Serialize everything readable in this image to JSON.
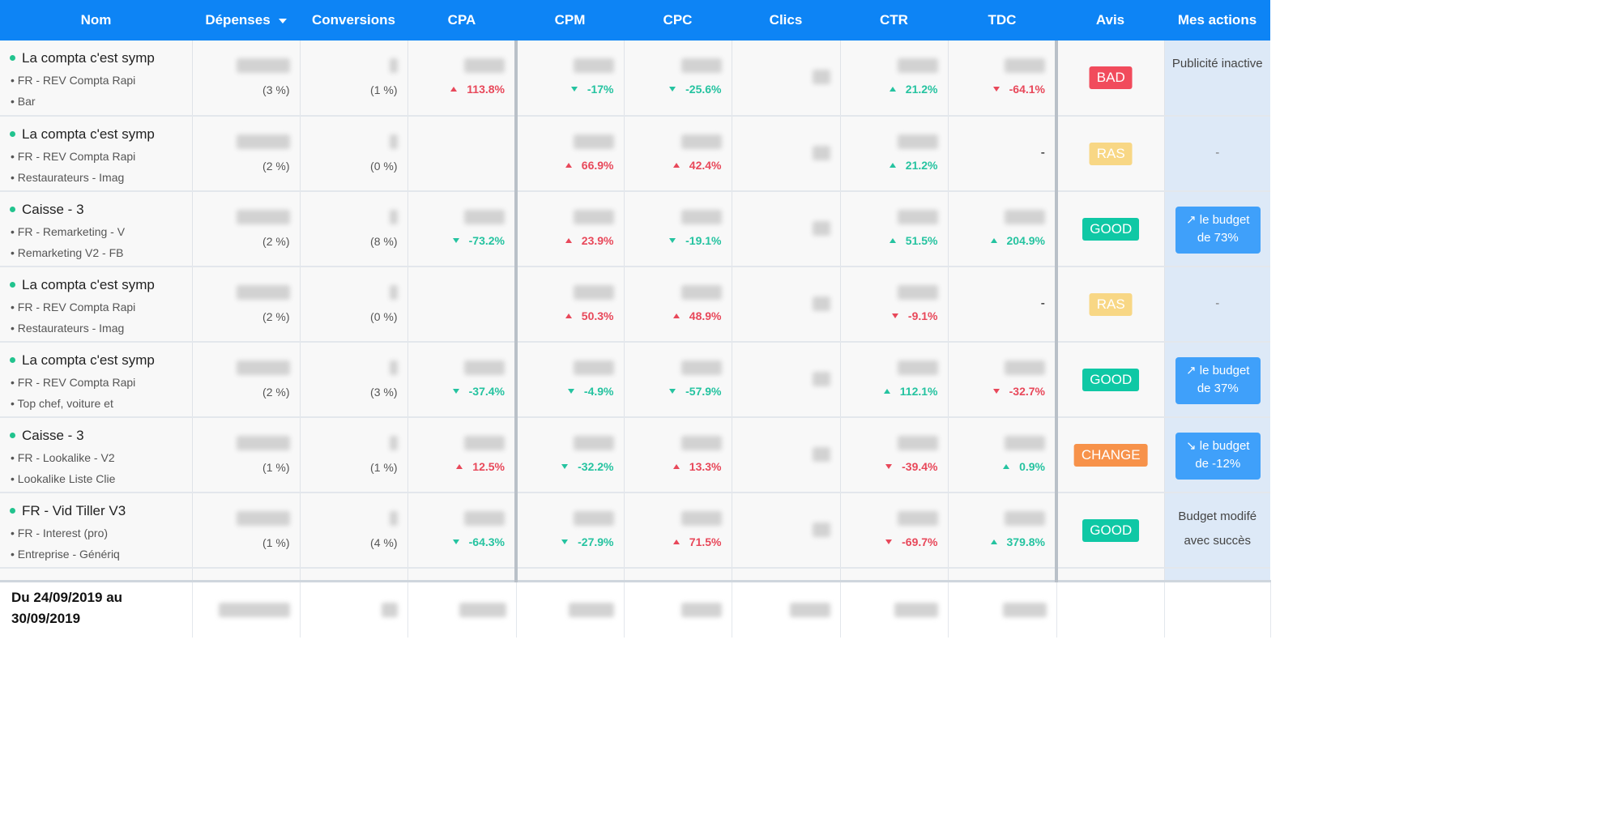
{
  "columns": [
    "Nom",
    "Dépenses",
    "Conversions",
    "CPA",
    "CPM",
    "CPC",
    "Clics",
    "CTR",
    "TDC",
    "Avis",
    "Mes actions"
  ],
  "rows": [
    {
      "name": "La compta c'est symp",
      "sub1": "• FR - REV Compta Rapi",
      "sub2": "• Bar",
      "spend_pct": "(3 %)",
      "conv_pct": "(1 %)",
      "cpa": {
        "delta": "113.8%",
        "dir": "up",
        "tone": "red"
      },
      "cpm": {
        "delta": "-17%",
        "dir": "down",
        "tone": "green"
      },
      "cpc": {
        "delta": "-25.6%",
        "dir": "down",
        "tone": "green"
      },
      "ctr": {
        "delta": "21.2%",
        "dir": "up",
        "tone": "green"
      },
      "tdc": {
        "delta": "-64.1%",
        "dir": "down",
        "tone": "red"
      },
      "avis": "BAD",
      "action_type": "text",
      "action": "Publicité inactive"
    },
    {
      "name": "La compta c'est symp",
      "sub1": "• FR - REV Compta Rapi",
      "sub2": "• Restaurateurs - Imag",
      "spend_pct": "(2 %)",
      "conv_pct": "(0 %)",
      "cpa": null,
      "cpm": {
        "delta": "66.9%",
        "dir": "up",
        "tone": "red"
      },
      "cpc": {
        "delta": "42.4%",
        "dir": "up",
        "tone": "red"
      },
      "ctr": {
        "delta": "21.2%",
        "dir": "up",
        "tone": "green"
      },
      "tdc": "-",
      "avis": "RAS",
      "action_type": "dash",
      "action": "-"
    },
    {
      "name": "Caisse - 3",
      "sub1": "• FR - Remarketing - V",
      "sub2": "• Remarketing V2 - FB",
      "spend_pct": "(2 %)",
      "conv_pct": "(8 %)",
      "cpa": {
        "delta": "-73.2%",
        "dir": "down",
        "tone": "green"
      },
      "cpm": {
        "delta": "23.9%",
        "dir": "up",
        "tone": "red"
      },
      "cpc": {
        "delta": "-19.1%",
        "dir": "down",
        "tone": "green"
      },
      "ctr": {
        "delta": "51.5%",
        "dir": "up",
        "tone": "green"
      },
      "tdc": {
        "delta": "204.9%",
        "dir": "up",
        "tone": "green"
      },
      "avis": "GOOD",
      "action_type": "button",
      "action_line1": "↗ le budget",
      "action_line2": "de 73%"
    },
    {
      "name": "La compta c'est symp",
      "sub1": "• FR - REV Compta Rapi",
      "sub2": "• Restaurateurs - Imag",
      "spend_pct": "(2 %)",
      "conv_pct": "(0 %)",
      "cpa": null,
      "cpm": {
        "delta": "50.3%",
        "dir": "up",
        "tone": "red"
      },
      "cpc": {
        "delta": "48.9%",
        "dir": "up",
        "tone": "red"
      },
      "ctr": {
        "delta": "-9.1%",
        "dir": "down",
        "tone": "red"
      },
      "tdc": "-",
      "avis": "RAS",
      "action_type": "dash",
      "action": "-"
    },
    {
      "name": "La compta c'est symp",
      "sub1": "• FR - REV Compta Rapi",
      "sub2": "• Top chef, voiture et",
      "spend_pct": "(2 %)",
      "conv_pct": "(3 %)",
      "cpa": {
        "delta": "-37.4%",
        "dir": "down",
        "tone": "green"
      },
      "cpm": {
        "delta": "-4.9%",
        "dir": "down",
        "tone": "green"
      },
      "cpc": {
        "delta": "-57.9%",
        "dir": "down",
        "tone": "green"
      },
      "ctr": {
        "delta": "112.1%",
        "dir": "up",
        "tone": "green"
      },
      "tdc": {
        "delta": "-32.7%",
        "dir": "down",
        "tone": "red"
      },
      "avis": "GOOD",
      "action_type": "button",
      "action_line1": "↗ le budget",
      "action_line2": "de 37%"
    },
    {
      "name": "Caisse - 3",
      "sub1": "• FR - Lookalike - V2",
      "sub2": "• Lookalike Liste Clie",
      "spend_pct": "(1 %)",
      "conv_pct": "(1 %)",
      "cpa": {
        "delta": "12.5%",
        "dir": "up",
        "tone": "red"
      },
      "cpm": {
        "delta": "-32.2%",
        "dir": "down",
        "tone": "green"
      },
      "cpc": {
        "delta": "13.3%",
        "dir": "up",
        "tone": "red"
      },
      "ctr": {
        "delta": "-39.4%",
        "dir": "down",
        "tone": "red"
      },
      "tdc": {
        "delta": "0.9%",
        "dir": "up",
        "tone": "green"
      },
      "avis": "CHANGE",
      "action_type": "button",
      "action_line1": "↘ le budget",
      "action_line2": "de -12%"
    },
    {
      "name": "FR - Vid Tiller V3",
      "sub1": "• FR - Interest (pro)",
      "sub2": "• Entreprise - Génériq",
      "spend_pct": "(1 %)",
      "conv_pct": "(4 %)",
      "cpa": {
        "delta": "-64.3%",
        "dir": "down",
        "tone": "green"
      },
      "cpm": {
        "delta": "-27.9%",
        "dir": "down",
        "tone": "green"
      },
      "cpc": {
        "delta": "71.5%",
        "dir": "up",
        "tone": "red"
      },
      "ctr": {
        "delta": "-69.7%",
        "dir": "down",
        "tone": "red"
      },
      "tdc": {
        "delta": "379.8%",
        "dir": "up",
        "tone": "green"
      },
      "avis": "GOOD",
      "action_type": "text",
      "action": "Budget modifé avec succès"
    }
  ],
  "footer": {
    "period": "Du 24/09/2019 au 30/09/2019"
  },
  "colors": {
    "header_bg": "#0d84f5",
    "up_bad": "#e8485a",
    "down_good": "#25c3a0",
    "badge_bad": "#f14b5c",
    "badge_ras": "#f8d785",
    "badge_good": "#0fc8a5",
    "badge_change": "#f7924a",
    "action_btn": "#3fa0fa"
  }
}
